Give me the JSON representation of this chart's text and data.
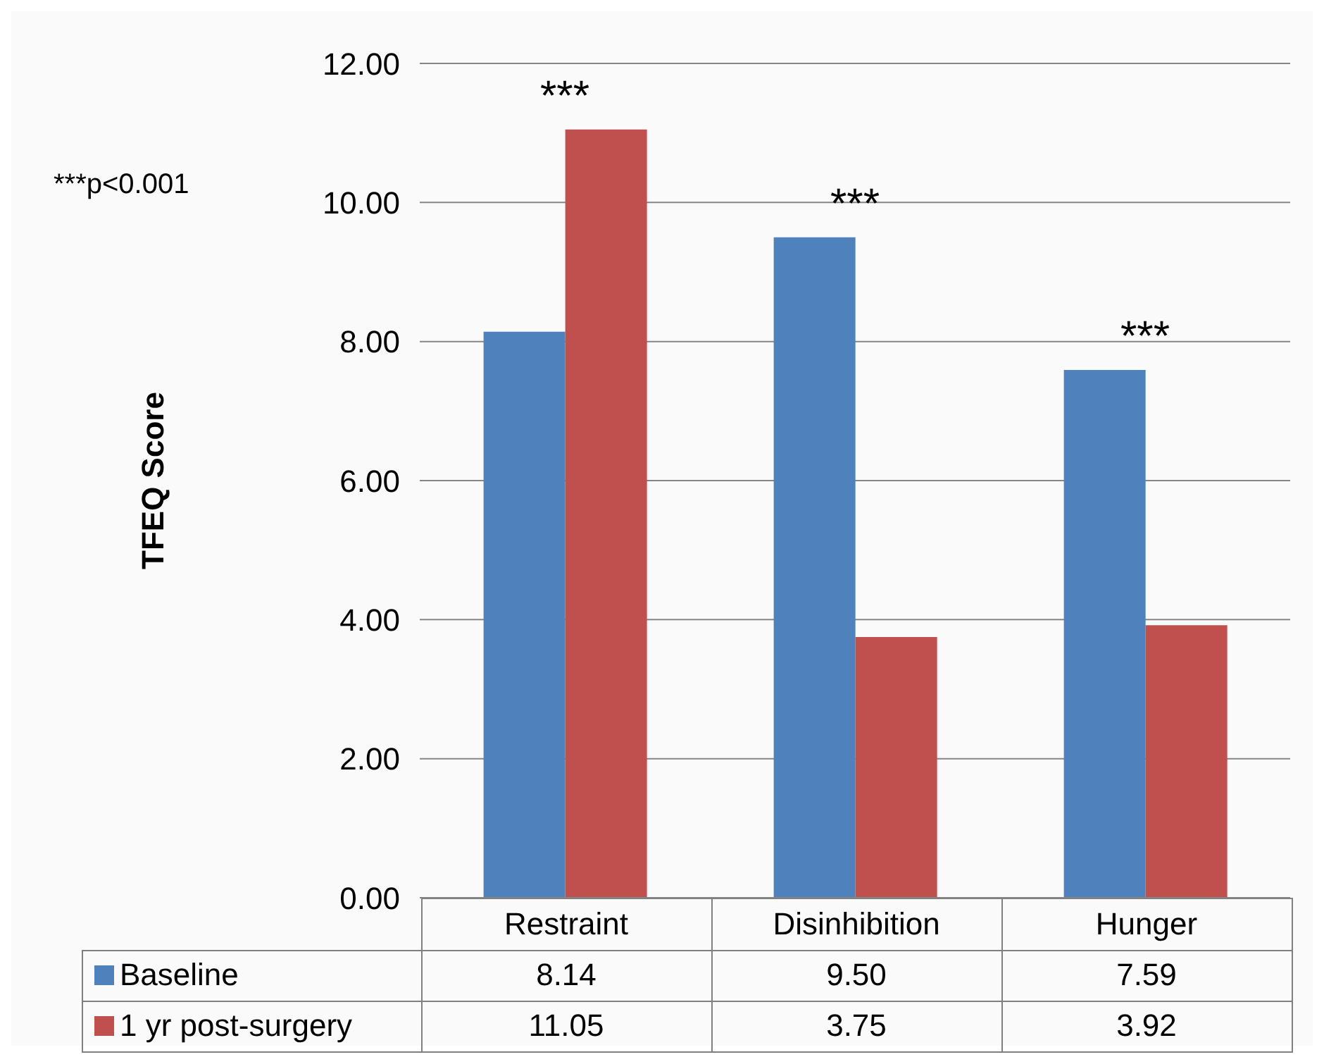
{
  "chart_data": {
    "type": "bar",
    "ylabel": "TFEQ Score",
    "categories": [
      "Restraint",
      "Disinhibition",
      "Hunger"
    ],
    "series": [
      {
        "name": "Baseline",
        "color": "#4f81bd",
        "values": [
          8.14,
          9.5,
          7.59
        ],
        "value_labels": [
          "8.14",
          "9.50",
          "7.59"
        ]
      },
      {
        "name": "1 yr post-surgery",
        "color": "#c0504d",
        "values": [
          11.05,
          3.75,
          3.92
        ],
        "value_labels": [
          "11.05",
          "3.75",
          "3.92"
        ]
      }
    ],
    "ylim": [
      0,
      12
    ],
    "yticks": [
      {
        "value": 0,
        "label": "0.00"
      },
      {
        "value": 2,
        "label": "2.00"
      },
      {
        "value": 4,
        "label": "4.00"
      },
      {
        "value": 6,
        "label": "6.00"
      },
      {
        "value": 8,
        "label": "8.00"
      },
      {
        "value": 10,
        "label": "10.00"
      },
      {
        "value": 12,
        "label": "12.00"
      }
    ],
    "grid": "y",
    "legend": "bottom",
    "annotations": [
      "***p<0.001",
      "***",
      "***",
      "***"
    ]
  }
}
